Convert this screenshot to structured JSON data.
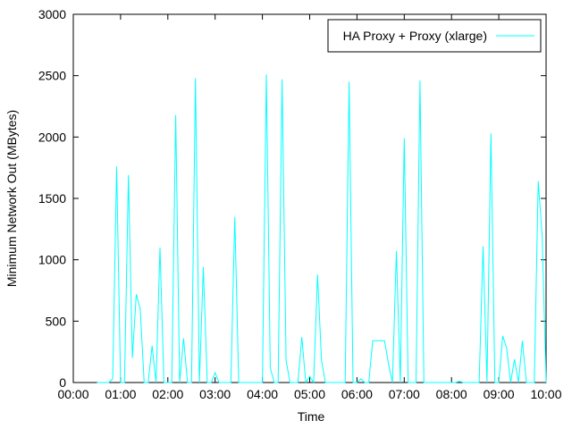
{
  "chart_data": {
    "type": "line",
    "xlabel": "Time",
    "ylabel": "Minimum Network Out (MBytes)",
    "xlim": [
      0,
      600
    ],
    "ylim": [
      0,
      3000
    ],
    "x_ticks": [
      {
        "value": 0,
        "label": "00:00"
      },
      {
        "value": 60,
        "label": "01:00"
      },
      {
        "value": 120,
        "label": "02:00"
      },
      {
        "value": 180,
        "label": "03:00"
      },
      {
        "value": 240,
        "label": "04:00"
      },
      {
        "value": 300,
        "label": "05:00"
      },
      {
        "value": 360,
        "label": "06:00"
      },
      {
        "value": 420,
        "label": "07:00"
      },
      {
        "value": 480,
        "label": "08:00"
      },
      {
        "value": 540,
        "label": "09:00"
      },
      {
        "value": 600,
        "label": "10:00"
      }
    ],
    "y_ticks": [
      {
        "value": 0,
        "label": "0"
      },
      {
        "value": 500,
        "label": "500"
      },
      {
        "value": 1000,
        "label": "1000"
      },
      {
        "value": 1500,
        "label": "1500"
      },
      {
        "value": 2000,
        "label": "2000"
      },
      {
        "value": 2500,
        "label": "2500"
      },
      {
        "value": 3000,
        "label": "3000"
      }
    ],
    "grid": false,
    "legend_position": "top-right",
    "series": [
      {
        "name": "HA Proxy + Proxy (xlarge)",
        "color": "#00ffff",
        "x": [
          30,
          40,
          45,
          50,
          55,
          60,
          65,
          70,
          75,
          80,
          85,
          90,
          95,
          100,
          105,
          110,
          115,
          120,
          125,
          130,
          135,
          140,
          145,
          150,
          155,
          160,
          165,
          170,
          175,
          180,
          185,
          190,
          195,
          200,
          205,
          210,
          215,
          220,
          225,
          230,
          235,
          240,
          245,
          250,
          255,
          260,
          265,
          270,
          275,
          280,
          285,
          290,
          295,
          300,
          305,
          310,
          315,
          320,
          325,
          330,
          335,
          340,
          345,
          350,
          355,
          360,
          365,
          370,
          375,
          380,
          385,
          390,
          395,
          400,
          405,
          410,
          415,
          420,
          425,
          430,
          435,
          440,
          445,
          450,
          455,
          460,
          465,
          470,
          475,
          480,
          485,
          490,
          495,
          500,
          505,
          510,
          515,
          520,
          525,
          530,
          535,
          540,
          545,
          550,
          555,
          560,
          565,
          570,
          575,
          580,
          585,
          590,
          595,
          600
        ],
        "y": [
          0,
          0,
          0,
          30,
          1760,
          0,
          0,
          1690,
          200,
          720,
          600,
          0,
          0,
          300,
          0,
          1100,
          0,
          0,
          0,
          2180,
          0,
          360,
          0,
          0,
          2480,
          0,
          940,
          0,
          0,
          80,
          0,
          0,
          0,
          0,
          1350,
          0,
          0,
          0,
          0,
          0,
          0,
          0,
          2510,
          120,
          0,
          0,
          2470,
          180,
          0,
          0,
          0,
          370,
          0,
          50,
          0,
          880,
          180,
          0,
          0,
          0,
          0,
          0,
          0,
          2450,
          0,
          0,
          30,
          0,
          0,
          340,
          340,
          340,
          340,
          150,
          0,
          1070,
          0,
          1990,
          0,
          0,
          0,
          2460,
          0,
          0,
          0,
          0,
          0,
          0,
          0,
          0,
          0,
          10,
          0,
          0,
          0,
          0,
          0,
          1110,
          0,
          2030,
          0,
          0,
          380,
          280,
          0,
          190,
          0,
          340,
          0,
          0,
          0,
          1640,
          1200,
          0
        ]
      }
    ]
  }
}
